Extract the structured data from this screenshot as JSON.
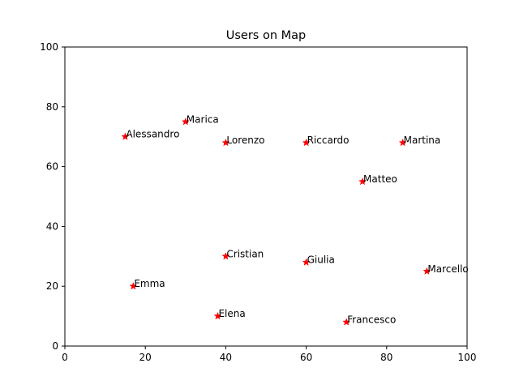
{
  "chart_data": {
    "type": "scatter",
    "title": "Users on Map",
    "xlabel": "",
    "ylabel": "",
    "xlim": [
      0,
      100
    ],
    "ylim": [
      0,
      100
    ],
    "xticks": [
      "0",
      "20",
      "40",
      "60",
      "80",
      "100"
    ],
    "yticks": [
      "0",
      "20",
      "40",
      "60",
      "80",
      "100"
    ],
    "grid": false,
    "marker": "star",
    "marker_color": "#ff0000",
    "points": [
      {
        "label": "Alessandro",
        "x": 15,
        "y": 70
      },
      {
        "label": "Marica",
        "x": 30,
        "y": 75
      },
      {
        "label": "Lorenzo",
        "x": 40,
        "y": 68
      },
      {
        "label": "Riccardo",
        "x": 60,
        "y": 68
      },
      {
        "label": "Martina",
        "x": 84,
        "y": 68
      },
      {
        "label": "Matteo",
        "x": 74,
        "y": 55
      },
      {
        "label": "Cristian",
        "x": 40,
        "y": 30
      },
      {
        "label": "Giulia",
        "x": 60,
        "y": 28
      },
      {
        "label": "Marcello",
        "x": 90,
        "y": 25
      },
      {
        "label": "Emma",
        "x": 17,
        "y": 20
      },
      {
        "label": "Elena",
        "x": 38,
        "y": 10
      },
      {
        "label": "Francesco",
        "x": 70,
        "y": 8
      }
    ]
  }
}
